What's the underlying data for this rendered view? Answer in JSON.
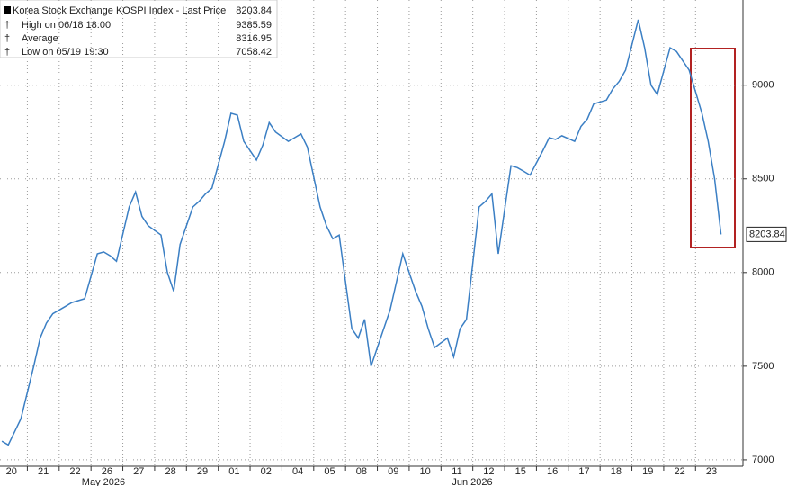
{
  "chart_data": {
    "type": "line",
    "legend": {
      "title": "Korea Stock Exchange KOSPI Index - Last Price",
      "last": 8203.84,
      "items": [
        {
          "label": "High on 06/18 18:00",
          "value": 9385.59
        },
        {
          "label": "Average",
          "value": 8316.95
        },
        {
          "label": "Low on 05/19 19:30",
          "value": 7058.42
        }
      ]
    },
    "xlim": [
      0.14,
      23.49
    ],
    "ylim": [
      6966,
      9455
    ],
    "yticks": [
      7000,
      7500,
      8000,
      8500,
      9000
    ],
    "xticks": [
      {
        "value": 0.5,
        "label": "20"
      },
      {
        "value": 1.5,
        "label": "21"
      },
      {
        "value": 2.5,
        "label": "22"
      },
      {
        "value": 3.5,
        "label": "26"
      },
      {
        "value": 4.5,
        "label": "27"
      },
      {
        "value": 5.5,
        "label": "28"
      },
      {
        "value": 6.5,
        "label": "29"
      },
      {
        "value": 7.5,
        "label": "01"
      },
      {
        "value": 8.5,
        "label": "02"
      },
      {
        "value": 9.5,
        "label": "04"
      },
      {
        "value": 10.5,
        "label": "05"
      },
      {
        "value": 11.5,
        "label": "08"
      },
      {
        "value": 12.5,
        "label": "09"
      },
      {
        "value": 13.5,
        "label": "10"
      },
      {
        "value": 14.5,
        "label": "11"
      },
      {
        "value": 15.5,
        "label": "12"
      },
      {
        "value": 16.5,
        "label": "15"
      },
      {
        "value": 17.5,
        "label": "16"
      },
      {
        "value": 18.5,
        "label": "17"
      },
      {
        "value": 19.5,
        "label": "18"
      },
      {
        "value": 20.5,
        "label": "19"
      },
      {
        "value": 21.5,
        "label": "22"
      },
      {
        "value": 22.5,
        "label": "23"
      }
    ],
    "months": [
      {
        "value": 3.39,
        "label": "May 2026"
      },
      {
        "value": 14.98,
        "label": "Jun 2026"
      }
    ],
    "grid": true,
    "series": [
      {
        "color": "#3b7fc4",
        "x": [
          0.2,
          0.4,
          0.6,
          0.8,
          1.2,
          1.4,
          1.6,
          1.8,
          2.2,
          2.4,
          2.6,
          2.8,
          3.2,
          3.4,
          3.6,
          3.8,
          4.2,
          4.4,
          4.6,
          4.8,
          5.2,
          5.4,
          5.6,
          5.8,
          6.2,
          6.4,
          6.6,
          6.8,
          7.2,
          7.4,
          7.6,
          7.8,
          8.2,
          8.4,
          8.6,
          8.8,
          9.2,
          9.4,
          9.6,
          9.8,
          10.2,
          10.4,
          10.6,
          10.8,
          11.2,
          11.4,
          11.6,
          11.8,
          12.2,
          12.4,
          12.6,
          12.8,
          13.2,
          13.4,
          13.6,
          13.8,
          14.2,
          14.4,
          14.6,
          14.8,
          15.2,
          15.4,
          15.6,
          15.8,
          16.2,
          16.4,
          16.6,
          16.8,
          17.2,
          17.4,
          17.6,
          17.8,
          18.2,
          18.4,
          18.6,
          18.8,
          19.2,
          19.4,
          19.6,
          19.8,
          20.2,
          20.4,
          20.6,
          20.8,
          21.2,
          21.4,
          21.6,
          21.8,
          22.2,
          22.4,
          22.6,
          22.8
        ],
        "values": [
          7100,
          7080,
          7150,
          7220,
          7500,
          7650,
          7730,
          7780,
          7820,
          7840,
          7850,
          7860,
          8100,
          8110,
          8090,
          8060,
          8350,
          8430,
          8300,
          8250,
          8200,
          8000,
          7900,
          8150,
          8350,
          8380,
          8420,
          8450,
          8700,
          8850,
          8840,
          8700,
          8600,
          8680,
          8800,
          8750,
          8700,
          8720,
          8740,
          8670,
          8350,
          8250,
          8180,
          8200,
          7700,
          7650,
          7750,
          7500,
          7700,
          7800,
          7950,
          8100,
          7900,
          7820,
          7700,
          7600,
          7650,
          7550,
          7700,
          7750,
          8350,
          8380,
          8420,
          8100,
          8570,
          8560,
          8540,
          8520,
          8650,
          8720,
          8710,
          8730,
          8700,
          8780,
          8820,
          8900,
          8920,
          8980,
          9020,
          9080,
          9350,
          9200,
          9000,
          8950,
          9200,
          9180,
          9130,
          9080,
          8850,
          8700,
          8500,
          8204
        ]
      }
    ]
  }
}
